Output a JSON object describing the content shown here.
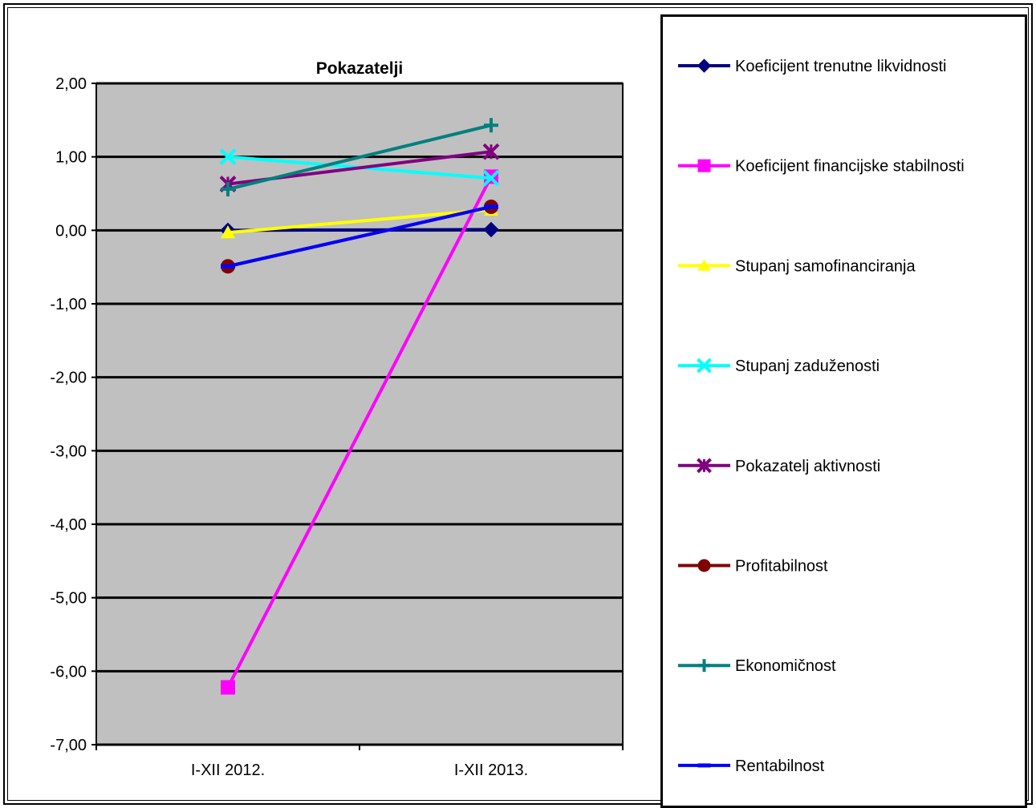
{
  "chart_data": {
    "type": "line",
    "title": "Pokazatelji",
    "categories": [
      "I-XII 2012.",
      "I-XII 2013."
    ],
    "ylim": [
      -7,
      2
    ],
    "yticks": [
      2,
      1,
      0,
      -1,
      -2,
      -3,
      -4,
      -5,
      -6,
      -7
    ],
    "ytick_labels": [
      "2,00",
      "1,00",
      "0,00",
      "-1,00",
      "-2,00",
      "-3,00",
      "-4,00",
      "-5,00",
      "-6,00",
      "-7,00"
    ],
    "grid": true,
    "legend_position": "right",
    "plot_background": "#C0C0C0",
    "series": [
      {
        "name": "Koeficijent trenutne likvidnosti",
        "values": [
          0.0,
          0.01
        ],
        "color": "#000080",
        "marker": "diamond"
      },
      {
        "name": "Koeficijent financijske stabilnosti",
        "values": [
          -6.22,
          0.73
        ],
        "color": "#FF00FF",
        "marker": "square"
      },
      {
        "name": "Stupanj samofinanciranja",
        "values": [
          -0.03,
          0.28
        ],
        "color": "#FFFF00",
        "marker": "triangle"
      },
      {
        "name": "Stupanj zaduženosti",
        "values": [
          1.0,
          0.71
        ],
        "color": "#00FFFF",
        "marker": "x"
      },
      {
        "name": "Pokazatelj aktivnosti",
        "values": [
          0.63,
          1.07
        ],
        "color": "#800080",
        "marker": "star"
      },
      {
        "name": "Profitabilnost",
        "values": [
          -0.49,
          0.32
        ],
        "color": "#800000",
        "marker": "circle"
      },
      {
        "name": "Ekonomičnost",
        "values": [
          0.56,
          1.43
        ],
        "color": "#008080",
        "marker": "plus"
      },
      {
        "name": "Rentabilnost",
        "values": [
          -0.49,
          0.32
        ],
        "color": "#0000FF",
        "marker": "dash"
      }
    ]
  }
}
